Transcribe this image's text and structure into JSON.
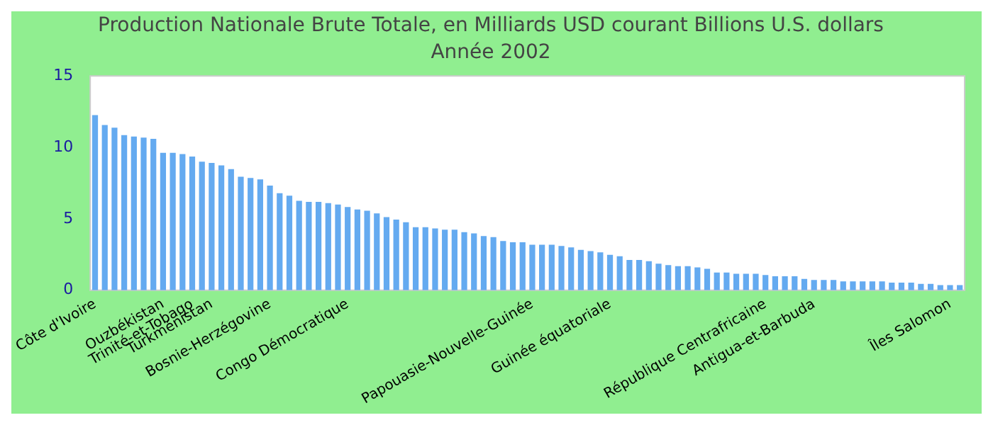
{
  "chart_data": {
    "type": "bar",
    "title": "Production Nationale Brute Totale, en Milliards USD courant Billions U.S. dollars",
    "subtitle": "Année 2002",
    "categories": [
      "Côte d'Ivoire",
      null,
      null,
      null,
      null,
      null,
      null,
      "Ouzbékistan",
      null,
      null,
      "Trinité-et-Tobago",
      null,
      "Turkménistan",
      null,
      null,
      null,
      null,
      null,
      "Bosnie-Herzégovine",
      null,
      null,
      null,
      null,
      null,
      null,
      null,
      "Congo Démocratique",
      null,
      null,
      null,
      null,
      null,
      null,
      null,
      null,
      null,
      null,
      null,
      null,
      null,
      null,
      null,
      null,
      null,
      null,
      "Papouasie-Nouvelle-Guinée",
      null,
      null,
      null,
      null,
      null,
      null,
      null,
      "Guinée équatoriale",
      null,
      null,
      null,
      null,
      null,
      null,
      null,
      null,
      null,
      null,
      null,
      null,
      null,
      null,
      null,
      "République Centrafricaine",
      null,
      null,
      null,
      null,
      "Antigua-et-Barbuda",
      null,
      null,
      null,
      null,
      null,
      null,
      null,
      null,
      null,
      null,
      null,
      null,
      null,
      "Îles Salomon",
      null
    ],
    "values": [
      12.26,
      11.56,
      11.38,
      10.85,
      10.76,
      10.68,
      10.59,
      9.62,
      9.62,
      9.53,
      9.35,
      9.0,
      8.91,
      8.74,
      8.47,
      7.94,
      7.85,
      7.76,
      7.32,
      6.79,
      6.62,
      6.26,
      6.18,
      6.18,
      6.09,
      6.0,
      5.82,
      5.65,
      5.56,
      5.38,
      5.12,
      4.94,
      4.76,
      4.41,
      4.41,
      4.32,
      4.24,
      4.24,
      4.06,
      3.97,
      3.79,
      3.71,
      3.44,
      3.35,
      3.35,
      3.18,
      3.18,
      3.18,
      3.09,
      3.0,
      2.82,
      2.74,
      2.65,
      2.47,
      2.38,
      2.12,
      2.12,
      2.03,
      1.85,
      1.76,
      1.68,
      1.68,
      1.59,
      1.5,
      1.24,
      1.24,
      1.15,
      1.15,
      1.15,
      1.06,
      0.97,
      0.97,
      0.97,
      0.79,
      0.71,
      0.71,
      0.71,
      0.62,
      0.62,
      0.62,
      0.62,
      0.62,
      0.53,
      0.53,
      0.53,
      0.44,
      0.44,
      0.35,
      0.35,
      0.35
    ],
    "color": "#64aaf0",
    "ylim": [
      0,
      15
    ],
    "yticks": [
      0,
      5,
      10,
      15
    ],
    "grid": false,
    "legend": false
  }
}
